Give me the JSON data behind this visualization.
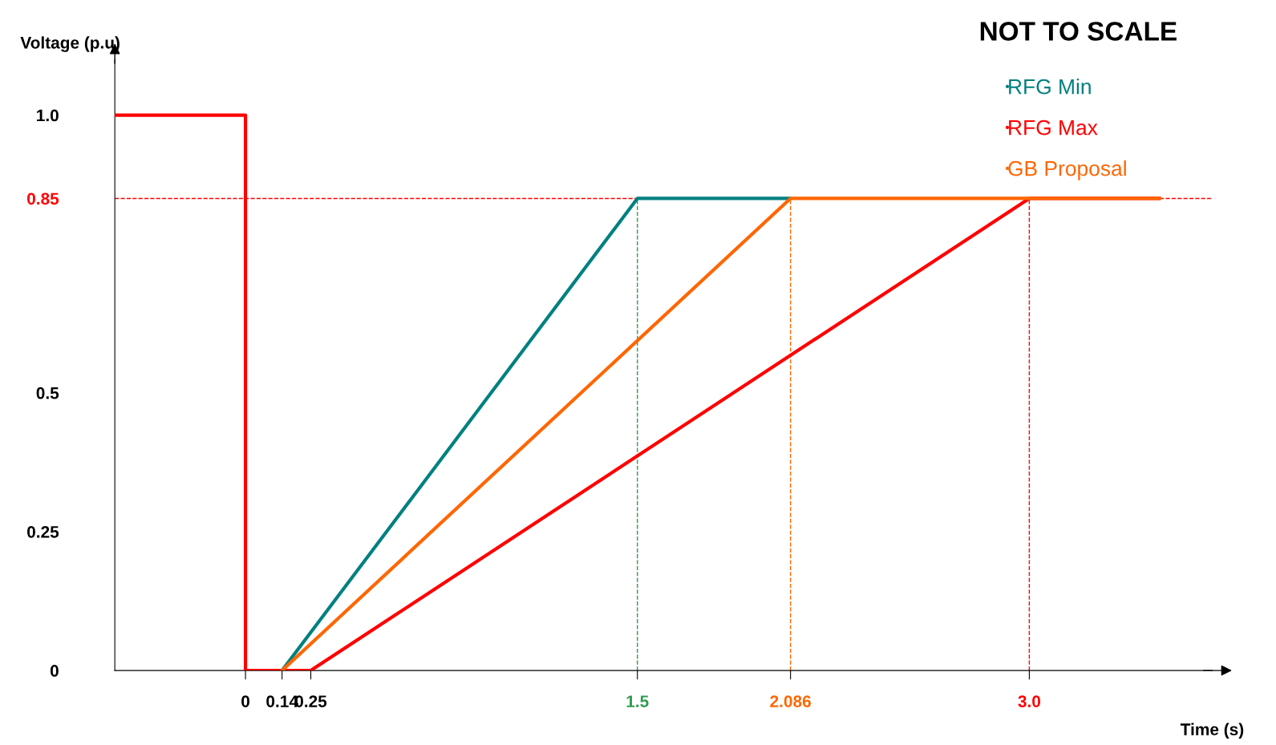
{
  "chart_data": {
    "type": "line",
    "xlabel": "Time (s)",
    "ylabel": "Voltage (p.u)",
    "series": [
      {
        "name": "RFG Min",
        "color": "#008080",
        "x": [
          0,
          0.14,
          1.5,
          2.086
        ],
        "values": [
          0,
          0,
          0.85,
          0.85
        ]
      },
      {
        "name": "RFG Max",
        "color": "#ff0000",
        "x": [
          -0.5,
          0,
          0,
          0.25,
          3.0,
          3.5
        ],
        "values": [
          1.0,
          1.0,
          0,
          0,
          0.85,
          0.85
        ]
      },
      {
        "name": "GB Proposal",
        "color": "#ff6600",
        "x": [
          0.14,
          2.086,
          3.5
        ],
        "values": [
          0,
          0.85,
          0.85
        ]
      }
    ],
    "xlim": [
      -0.5,
      3.7
    ],
    "ylim": [
      0,
      1.1
    ],
    "xticks": [
      0,
      0.14,
      0.25,
      1.5,
      2.086,
      {
        "value": 3.0,
        "label": "3.0"
      }
    ],
    "yticks": [
      0,
      0.25,
      0.5,
      0.85,
      {
        "value": 1.0,
        "label": "1.0"
      }
    ],
    "ref_lines": [
      {
        "axis": "y",
        "value": 0.85,
        "color": "#ff0000",
        "line_style": "dashed"
      },
      {
        "axis": "x",
        "value": 1.5,
        "color": "#2e9b4e",
        "line_style": "dashed"
      },
      {
        "axis": "x",
        "value": 2.086,
        "color": "#ff6600",
        "line_style": "dashed"
      },
      {
        "axis": "x",
        "value": 3.0,
        "color": "#ff0000",
        "line_style": "dashed"
      }
    ],
    "annotations": [
      "NOT TO SCALE"
    ],
    "legend": "top right",
    "grid": false
  }
}
